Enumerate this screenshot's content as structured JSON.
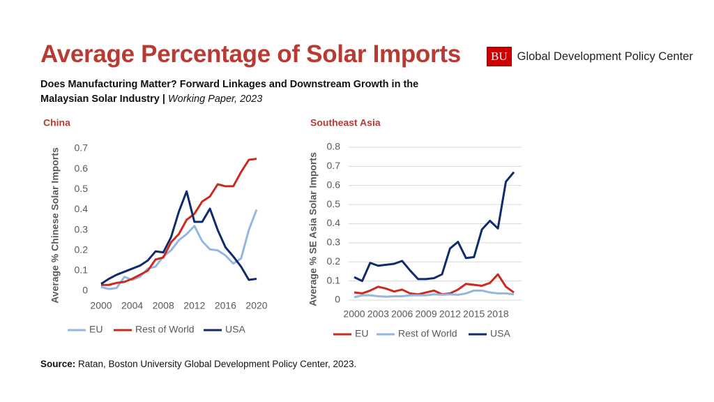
{
  "title": "Average Percentage of Solar Imports",
  "subtitle": "Does Manufacturing Matter? Forward Linkages and Downstream Growth in the Malaysian Solar Industry |",
  "subtitle_note": "Working Paper, 2023",
  "logo": {
    "mark": "BU",
    "text": "Global Development Policy Center"
  },
  "source": {
    "label": "Source:",
    "text": "Ratan, Boston University Global Development Policy Center, 2023."
  },
  "chart_data": [
    {
      "type": "line",
      "title": "China",
      "y_label": "Average % Chinese Solar Imports",
      "x": [
        2000,
        2001,
        2002,
        2003,
        2004,
        2005,
        2006,
        2007,
        2008,
        2009,
        2010,
        2011,
        2012,
        2013,
        2014,
        2015,
        2016,
        2017,
        2018,
        2019,
        2020
      ],
      "xlim": [
        2000,
        2020
      ],
      "xticks": [
        2000,
        2004,
        2008,
        2012,
        2016,
        2020
      ],
      "ylim": [
        0,
        0.7
      ],
      "yticks": [
        0,
        0.1,
        0.2,
        0.3,
        0.4,
        0.5,
        0.6,
        0.7
      ],
      "grid": false,
      "series": [
        {
          "name": "EU",
          "color": "#94b6e0",
          "values": [
            0.02,
            0.01,
            0.015,
            0.07,
            0.055,
            0.07,
            0.11,
            0.12,
            0.17,
            0.2,
            0.25,
            0.28,
            0.32,
            0.245,
            0.205,
            0.2,
            0.175,
            0.135,
            0.16,
            0.3,
            0.4
          ]
        },
        {
          "name": "Rest of World",
          "color": "#cc2a1e",
          "values": [
            0.03,
            0.03,
            0.04,
            0.045,
            0.06,
            0.08,
            0.1,
            0.155,
            0.165,
            0.24,
            0.28,
            0.35,
            0.38,
            0.44,
            0.465,
            0.525,
            0.515,
            0.515,
            0.585,
            0.645,
            0.65
          ]
        },
        {
          "name": "USA",
          "color": "#102a6c",
          "values": [
            0.035,
            0.06,
            0.08,
            0.095,
            0.11,
            0.125,
            0.15,
            0.195,
            0.19,
            0.265,
            0.39,
            0.49,
            0.34,
            0.34,
            0.405,
            0.3,
            0.215,
            0.17,
            0.12,
            0.055,
            0.06
          ]
        }
      ]
    },
    {
      "type": "line",
      "title": "Southeast Asia",
      "y_label": "Average % SE Asia Solar Imports",
      "x": [
        2000,
        2001,
        2002,
        2003,
        2004,
        2005,
        2006,
        2007,
        2008,
        2009,
        2010,
        2011,
        2012,
        2013,
        2014,
        2015,
        2016,
        2017,
        2018,
        2019,
        2020
      ],
      "xlim": [
        2000,
        2020
      ],
      "xticks": [
        2000,
        2003,
        2006,
        2009,
        2012,
        2015,
        2018
      ],
      "ylim": [
        0,
        0.8
      ],
      "yticks": [
        0,
        0.1,
        0.2,
        0.3,
        0.4,
        0.5,
        0.6,
        0.7,
        0.8
      ],
      "grid": true,
      "series": [
        {
          "name": "EU",
          "color": "#cc2a1e",
          "values": [
            0.04,
            0.035,
            0.05,
            0.07,
            0.06,
            0.045,
            0.055,
            0.035,
            0.03,
            0.04,
            0.05,
            0.03,
            0.035,
            0.055,
            0.085,
            0.08,
            0.075,
            0.09,
            0.135,
            0.07,
            0.04
          ]
        },
        {
          "name": "Rest of World",
          "color": "#94b6e0",
          "values": [
            0.015,
            0.025,
            0.025,
            0.02,
            0.018,
            0.02,
            0.02,
            0.025,
            0.025,
            0.025,
            0.03,
            0.028,
            0.03,
            0.028,
            0.035,
            0.05,
            0.05,
            0.04,
            0.035,
            0.035,
            0.03
          ]
        },
        {
          "name": "USA",
          "color": "#102a6c",
          "values": [
            0.12,
            0.1,
            0.195,
            0.18,
            0.185,
            0.19,
            0.205,
            0.155,
            0.11,
            0.11,
            0.115,
            0.135,
            0.27,
            0.305,
            0.22,
            0.225,
            0.37,
            0.415,
            0.375,
            0.62,
            0.67
          ]
        }
      ]
    }
  ]
}
